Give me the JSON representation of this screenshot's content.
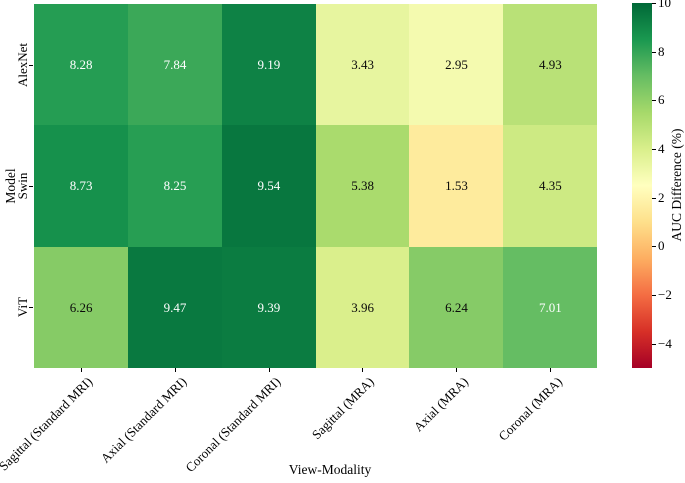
{
  "chart_data": {
    "type": "heatmap",
    "xlabel": "View-Modality",
    "ylabel": "Model",
    "rows": [
      "AlexNet",
      "Swin",
      "ViT"
    ],
    "columns": [
      "Sagittal (Standard MRI)",
      "Axial (Standard MRI)",
      "Coronal (Standard MRI)",
      "Sagittal (MRA)",
      "Axial (MRA)",
      "Coronal (MRA)"
    ],
    "values": [
      [
        8.28,
        7.84,
        9.19,
        3.43,
        2.95,
        4.93
      ],
      [
        8.73,
        8.25,
        9.54,
        5.38,
        1.53,
        4.35
      ],
      [
        6.26,
        9.47,
        9.39,
        3.96,
        6.24,
        7.01
      ]
    ],
    "annotations": [
      [
        "8.28",
        "7.84",
        "9.19",
        "3.43",
        "2.95",
        "4.93"
      ],
      [
        "8.73",
        "8.25",
        "9.54",
        "5.38",
        "1.53",
        "4.35"
      ],
      [
        "6.26",
        "9.47",
        "9.39",
        "3.96",
        "6.24",
        "7.01"
      ]
    ],
    "vmin": -5,
    "vmax": 10,
    "colormap": "RdYlGn",
    "colormap_stops": [
      {
        "t": 0.0,
        "color": "#A50026"
      },
      {
        "t": 0.1,
        "color": "#D73027"
      },
      {
        "t": 0.2,
        "color": "#F46D43"
      },
      {
        "t": 0.3,
        "color": "#FDAE61"
      },
      {
        "t": 0.4,
        "color": "#FEE08B"
      },
      {
        "t": 0.5,
        "color": "#FFFFBF"
      },
      {
        "t": 0.6,
        "color": "#D9EF8B"
      },
      {
        "t": 0.7,
        "color": "#A6D96A"
      },
      {
        "t": 0.8,
        "color": "#66BD63"
      },
      {
        "t": 0.9,
        "color": "#1A9850"
      },
      {
        "t": 1.0,
        "color": "#006837"
      }
    ],
    "colorbar_label": "AUC Difference (%)",
    "colorbar_tick_values": [
      10,
      8,
      6,
      4,
      2,
      0,
      -2,
      -4
    ],
    "colorbar_tick_labels": [
      "10",
      "8",
      "6",
      "4",
      "2",
      "0",
      "−2",
      "−4"
    ],
    "annotation_text_colors": {
      "light": "#0a0a0a",
      "dark": "#ffffff"
    },
    "grid": false,
    "legend_position": "colorbar-right"
  }
}
